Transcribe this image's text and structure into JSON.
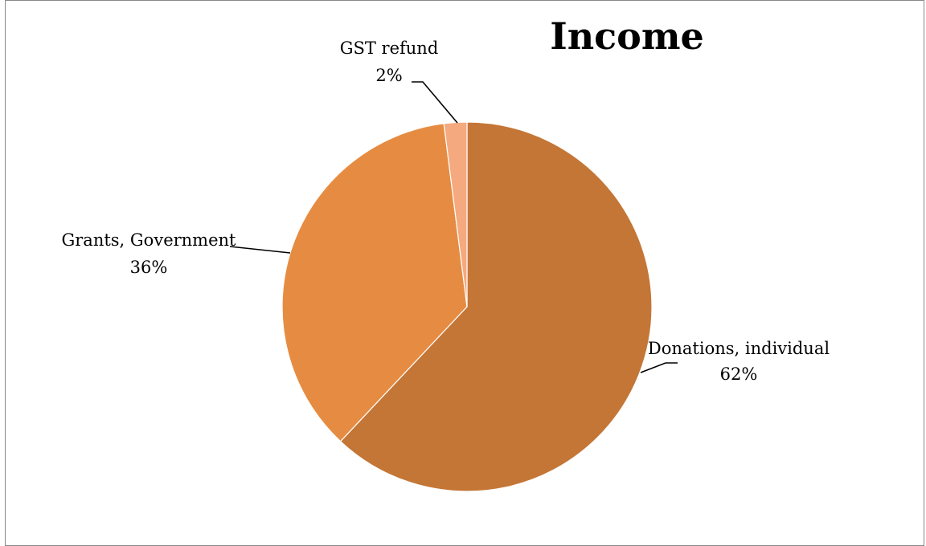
{
  "chart_data": {
    "type": "pie",
    "title": "Income",
    "slices": [
      {
        "label": "Donations, individual",
        "percent_label": "62%",
        "value": 62,
        "color": "#C47636"
      },
      {
        "label": "Grants, Government",
        "percent_label": "36%",
        "value": 36,
        "color": "#E68C42"
      },
      {
        "label": "GST refund",
        "percent_label": "2%",
        "value": 2,
        "color": "#F5A97E"
      }
    ],
    "start_angle_deg": 0,
    "direction": "clockwise",
    "legend": "none",
    "slice_border_color": "#FFFFFF"
  }
}
